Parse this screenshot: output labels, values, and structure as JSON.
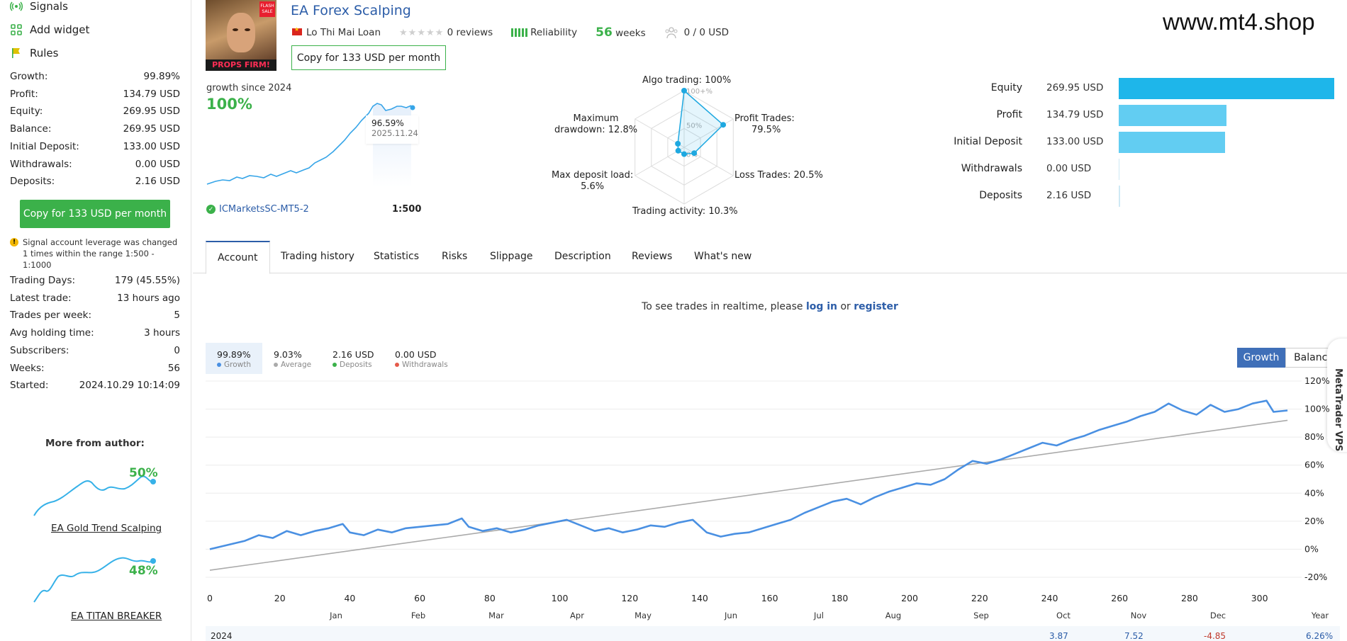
{
  "sidebar": {
    "nav": [
      {
        "label": "Signals",
        "icon": "signal-icon"
      },
      {
        "label": "Add widget",
        "icon": "widget-icon"
      },
      {
        "label": "Rules",
        "icon": "rules-icon"
      }
    ],
    "stats_top": [
      {
        "label": "Growth:",
        "value": "99.89%"
      },
      {
        "label": "Profit:",
        "value": "134.79 USD"
      },
      {
        "label": "Equity:",
        "value": "269.95 USD"
      },
      {
        "label": "Balance:",
        "value": "269.95 USD"
      },
      {
        "label": "Initial Deposit:",
        "value": "133.00 USD"
      },
      {
        "label": "Withdrawals:",
        "value": "0.00 USD"
      },
      {
        "label": "Deposits:",
        "value": "2.16 USD"
      }
    ],
    "copy_button": "Copy for 133 USD per month",
    "warning": "Signal account leverage was changed 1 times within the range 1:500 - 1:1000",
    "stats_bottom": [
      {
        "label": "Trading Days:",
        "value": "179 (45.55%)"
      },
      {
        "label": "Latest trade:",
        "value": "13 hours ago"
      },
      {
        "label": "Trades per week:",
        "value": "5"
      },
      {
        "label": "Avg holding time:",
        "value": "3 hours"
      },
      {
        "label": "Subscribers:",
        "value": "0"
      },
      {
        "label": "Weeks:",
        "value": "56"
      },
      {
        "label": "Started:",
        "value": "2024.10.29 10:14:09"
      }
    ],
    "more_from_author": "More from author:",
    "author_signals": [
      {
        "name": "EA Gold Trend Scalping",
        "growth": "50%"
      },
      {
        "name": "EA TITAN BREAKER",
        "growth": "48%"
      }
    ]
  },
  "header": {
    "title": "EA Forex Scalping",
    "author": "Lo Thi Mai Loan",
    "reviews": "0 reviews",
    "reliability": "Reliability",
    "weeks_num": "56",
    "weeks_label": "weeks",
    "subscribers_funds": "0 / 0 USD",
    "copy_button": "Copy for 133 USD per month",
    "avatar_text": "PROPS FIRM!",
    "avatar_badge": "FLASH SALE",
    "watermark": "www.mt4.shop"
  },
  "growth_widget": {
    "label": "growth since 2024",
    "value": "100%",
    "tooltip_value": "96.59%",
    "tooltip_date": "2025.11.24",
    "broker": "ICMarketsSC-MT5-2",
    "leverage": "1:500"
  },
  "radar": {
    "algo": "Algo trading: 100%",
    "profit_l1": "Profit Trades:",
    "profit_l2": "79.5%",
    "loss": "Loss Trades: 20.5%",
    "activity": "Trading activity: 10.3%",
    "deposit_l1": "Max deposit load:",
    "deposit_l2": "5.6%",
    "drawdown_l1": "Maximum",
    "drawdown_l2": "drawdown: 12.8%",
    "ring_100": "100+%",
    "ring_50": "50%",
    "ring_0": "0%",
    "values": {
      "algo": 100,
      "profit": 79.5,
      "loss": 20.5,
      "activity": 10.3,
      "deposit": 5.6,
      "drawdown": 12.8
    }
  },
  "equity_bars": [
    {
      "label": "Equity",
      "value": "269.95 USD",
      "amount": 269.95,
      "color": "#1eb6ea"
    },
    {
      "label": "Profit",
      "value": "134.79 USD",
      "amount": 134.79,
      "color": "#62cdf2"
    },
    {
      "label": "Initial Deposit",
      "value": "133.00 USD",
      "amount": 133.0,
      "color": "#62cdf2"
    },
    {
      "label": "Withdrawals",
      "value": "0.00 USD",
      "amount": 0,
      "color": "#62cdf2"
    },
    {
      "label": "Deposits",
      "value": "2.16 USD",
      "amount": 2.16,
      "color": "#62cdf2"
    }
  ],
  "tabs": [
    "Account",
    "Trading history",
    "Statistics",
    "Risks",
    "Slippage",
    "Description",
    "Reviews",
    "What's new"
  ],
  "realtime": {
    "pre": "To see trades in realtime, please",
    "login": "log in",
    "mid": "or",
    "register": "register"
  },
  "legend": [
    {
      "value": "99.89%",
      "label": "Growth",
      "color": "#4a90e2"
    },
    {
      "value": "9.03%",
      "label": "Average",
      "color": "#aaaaaa"
    },
    {
      "value": "2.16 USD",
      "label": "Deposits",
      "color": "#3bb14a"
    },
    {
      "value": "0.00 USD",
      "label": "Withdrawals",
      "color": "#e55a4a"
    }
  ],
  "toggle": {
    "growth": "Growth",
    "balance": "Balance"
  },
  "vps": "MetaTrader VPS",
  "colors": {
    "accent": "#2c5da8",
    "green": "#3bb14a",
    "line": "#4a90e2",
    "trend": "#aaaaaa"
  },
  "chart_data": {
    "type": "line",
    "xlabel": "",
    "ylabel": "",
    "x_ticks": [
      "0",
      "20",
      "40",
      "60",
      "80",
      "100",
      "120",
      "140",
      "160",
      "180",
      "200",
      "220",
      "240",
      "260",
      "280",
      "300"
    ],
    "y_ticks": [
      "120%",
      "100%",
      "80%",
      "60%",
      "40%",
      "20%",
      "0%",
      "-20%"
    ],
    "ylim": [
      -20,
      120
    ],
    "xlim": [
      0,
      310
    ],
    "months": [
      "Jan",
      "Feb",
      "Mar",
      "Apr",
      "May",
      "Jun",
      "Jul",
      "Aug",
      "Sep",
      "Oct",
      "Nov",
      "Dec",
      "Year"
    ],
    "year_row": {
      "year": "2024",
      "values": [
        {
          "v": "3.87",
          "color": "#2c5da8"
        },
        {
          "v": "7.52",
          "color": "#2c5da8"
        },
        {
          "v": "-4.85",
          "color": "#c0392b"
        },
        {
          "v": "6.26%",
          "color": "#2c5da8"
        }
      ]
    },
    "series": [
      {
        "kind": "growth",
        "points": [
          [
            0,
            0
          ],
          [
            5,
            3
          ],
          [
            10,
            6
          ],
          [
            14,
            10
          ],
          [
            18,
            8
          ],
          [
            22,
            13
          ],
          [
            26,
            10
          ],
          [
            30,
            13
          ],
          [
            34,
            15
          ],
          [
            38,
            18
          ],
          [
            40,
            12
          ],
          [
            44,
            10
          ],
          [
            48,
            14
          ],
          [
            52,
            12
          ],
          [
            56,
            15
          ],
          [
            60,
            16
          ],
          [
            64,
            17
          ],
          [
            68,
            18
          ],
          [
            72,
            22
          ],
          [
            74,
            16
          ],
          [
            78,
            13
          ],
          [
            82,
            15
          ],
          [
            86,
            12
          ],
          [
            90,
            14
          ],
          [
            94,
            17
          ],
          [
            98,
            19
          ],
          [
            102,
            21
          ],
          [
            106,
            17
          ],
          [
            110,
            13
          ],
          [
            114,
            15
          ],
          [
            118,
            12
          ],
          [
            122,
            14
          ],
          [
            126,
            17
          ],
          [
            130,
            16
          ],
          [
            134,
            19
          ],
          [
            138,
            21
          ],
          [
            142,
            12
          ],
          [
            146,
            9
          ],
          [
            150,
            11
          ],
          [
            154,
            12
          ],
          [
            158,
            15
          ],
          [
            162,
            18
          ],
          [
            166,
            21
          ],
          [
            170,
            26
          ],
          [
            174,
            30
          ],
          [
            178,
            34
          ],
          [
            182,
            36
          ],
          [
            186,
            32
          ],
          [
            190,
            37
          ],
          [
            194,
            41
          ],
          [
            198,
            44
          ],
          [
            202,
            47
          ],
          [
            206,
            46
          ],
          [
            210,
            50
          ],
          [
            214,
            57
          ],
          [
            218,
            63
          ],
          [
            222,
            61
          ],
          [
            226,
            64
          ],
          [
            230,
            68
          ],
          [
            234,
            72
          ],
          [
            238,
            76
          ],
          [
            242,
            74
          ],
          [
            246,
            78
          ],
          [
            250,
            81
          ],
          [
            254,
            85
          ],
          [
            258,
            88
          ],
          [
            262,
            91
          ],
          [
            266,
            95
          ],
          [
            270,
            98
          ],
          [
            274,
            104
          ],
          [
            278,
            99
          ],
          [
            282,
            96
          ],
          [
            286,
            103
          ],
          [
            290,
            98
          ],
          [
            294,
            100
          ],
          [
            298,
            104
          ],
          [
            302,
            106
          ],
          [
            304,
            98
          ],
          [
            308,
            99
          ]
        ]
      },
      {
        "kind": "trend",
        "points": [
          [
            0,
            -15
          ],
          [
            308,
            92
          ]
        ]
      }
    ]
  }
}
